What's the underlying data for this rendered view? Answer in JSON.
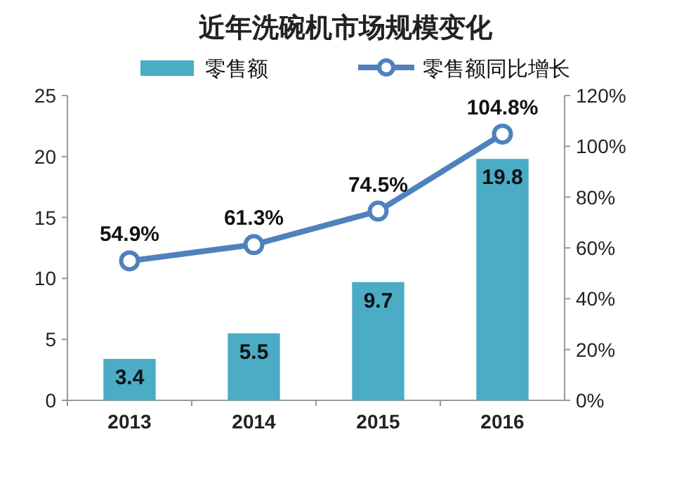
{
  "chart_data": {
    "type": "bar",
    "title": "近年洗碗机市场规模变化",
    "categories": [
      "2013",
      "2014",
      "2015",
      "2016"
    ],
    "series": [
      {
        "name": "零售额",
        "color": "#4bacc6",
        "values": [
          3.4,
          5.5,
          9.7,
          19.8
        ]
      },
      {
        "name": "零售额同比增长",
        "type": "line",
        "axis": "y2",
        "color": "#4f81bd",
        "marker": "circle",
        "values": [
          54.9,
          61.3,
          74.5,
          104.8
        ],
        "value_labels": [
          "54.9%",
          "61.3%",
          "74.5%",
          "104.8%"
        ]
      }
    ],
    "data_labels": true,
    "legend": "top",
    "ylim": [
      0,
      25
    ],
    "yticks": [
      0,
      5,
      10,
      15,
      20,
      25
    ],
    "y2lim": [
      0,
      120
    ],
    "y2ticks": [
      {
        "value": 0,
        "label": "0%"
      },
      {
        "value": 20,
        "label": "20%"
      },
      {
        "value": 40,
        "label": "40%"
      },
      {
        "value": 60,
        "label": "60%"
      },
      {
        "value": 80,
        "label": "80%"
      },
      {
        "value": 100,
        "label": "100%"
      },
      {
        "value": 120,
        "label": "120%"
      }
    ]
  }
}
